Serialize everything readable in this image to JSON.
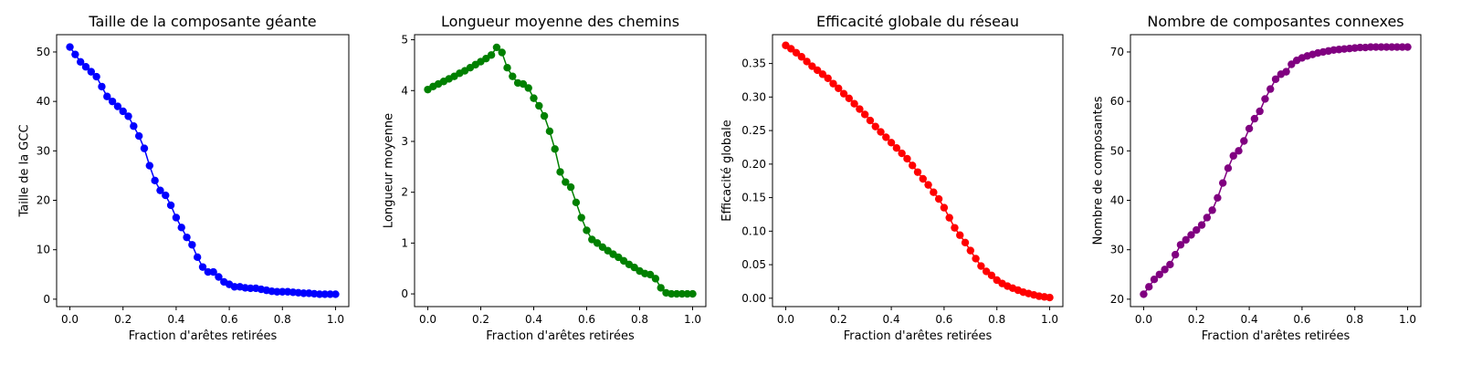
{
  "chart_data": [
    {
      "type": "line",
      "title": "Taille de la composante géante",
      "xlabel": "Fraction d'arêtes retirées",
      "ylabel": "Taille de la GCC",
      "xlim": [
        -0.05,
        1.05
      ],
      "ylim": [
        -1.5,
        53.5
      ],
      "xticks": [
        0.0,
        0.2,
        0.4,
        0.6,
        0.8,
        1.0
      ],
      "xtick_labels": [
        "0.0",
        "0.2",
        "0.4",
        "0.6",
        "0.8",
        "1.0"
      ],
      "yticks": [
        0,
        10,
        20,
        30,
        40,
        50
      ],
      "ytick_labels": [
        "0",
        "10",
        "20",
        "30",
        "40",
        "50"
      ],
      "grid": false,
      "series": [
        {
          "color": "#0000ff",
          "marker": "circle",
          "x": [
            0.0,
            0.02,
            0.04,
            0.06,
            0.08,
            0.1,
            0.12,
            0.14,
            0.16,
            0.18,
            0.2,
            0.22,
            0.24,
            0.26,
            0.28,
            0.3,
            0.32,
            0.34,
            0.36,
            0.38,
            0.4,
            0.42,
            0.44,
            0.46,
            0.48,
            0.5,
            0.52,
            0.54,
            0.56,
            0.58,
            0.6,
            0.62,
            0.64,
            0.66,
            0.68,
            0.7,
            0.72,
            0.74,
            0.76,
            0.78,
            0.8,
            0.82,
            0.84,
            0.86,
            0.88,
            0.9,
            0.92,
            0.94,
            0.96,
            0.98,
            1.0
          ],
          "y": [
            51,
            49.5,
            48,
            47,
            46,
            45,
            43,
            41,
            40,
            39,
            38,
            37,
            35,
            33,
            30.5,
            27,
            24,
            22,
            21,
            19,
            16.5,
            14.5,
            12.5,
            11,
            8.5,
            6.5,
            5.5,
            5.5,
            4.5,
            3.5,
            3,
            2.5,
            2.5,
            2.3,
            2.2,
            2.2,
            2.0,
            1.8,
            1.6,
            1.5,
            1.5,
            1.5,
            1.4,
            1.3,
            1.2,
            1.2,
            1.1,
            1.0,
            1.0,
            1.0,
            1.0
          ]
        }
      ]
    },
    {
      "type": "line",
      "title": "Longueur moyenne des chemins",
      "xlabel": "Fraction d'arêtes retirées",
      "ylabel": "Longueur moyenne",
      "xlim": [
        -0.05,
        1.05
      ],
      "ylim": [
        -0.25,
        5.1
      ],
      "xticks": [
        0.0,
        0.2,
        0.4,
        0.6,
        0.8,
        1.0
      ],
      "xtick_labels": [
        "0.0",
        "0.2",
        "0.4",
        "0.6",
        "0.8",
        "1.0"
      ],
      "yticks": [
        0,
        1,
        2,
        3,
        4,
        5
      ],
      "ytick_labels": [
        "0",
        "1",
        "2",
        "3",
        "4",
        "5"
      ],
      "grid": false,
      "series": [
        {
          "color": "#008000",
          "marker": "circle",
          "x": [
            0.0,
            0.02,
            0.04,
            0.06,
            0.08,
            0.1,
            0.12,
            0.14,
            0.16,
            0.18,
            0.2,
            0.22,
            0.24,
            0.26,
            0.28,
            0.3,
            0.32,
            0.34,
            0.36,
            0.38,
            0.4,
            0.42,
            0.44,
            0.46,
            0.48,
            0.5,
            0.52,
            0.54,
            0.56,
            0.58,
            0.6,
            0.62,
            0.64,
            0.66,
            0.68,
            0.7,
            0.72,
            0.74,
            0.76,
            0.78,
            0.8,
            0.82,
            0.84,
            0.86,
            0.88,
            0.9,
            0.92,
            0.94,
            0.96,
            0.98,
            1.0
          ],
          "y": [
            4.02,
            4.08,
            4.13,
            4.18,
            4.23,
            4.28,
            4.34,
            4.39,
            4.45,
            4.51,
            4.57,
            4.63,
            4.7,
            4.85,
            4.75,
            4.45,
            4.28,
            4.15,
            4.13,
            4.05,
            3.85,
            3.7,
            3.5,
            3.2,
            2.85,
            2.4,
            2.2,
            2.1,
            1.8,
            1.5,
            1.25,
            1.07,
            1.0,
            0.92,
            0.85,
            0.78,
            0.72,
            0.65,
            0.58,
            0.52,
            0.45,
            0.4,
            0.38,
            0.3,
            0.12,
            0.02,
            0.0,
            0.0,
            0.0,
            0.0,
            0.0
          ]
        }
      ]
    },
    {
      "type": "line",
      "title": "Efficacité globale du réseau",
      "xlabel": "Fraction d'arêtes retirées",
      "ylabel": "Efficacité globale",
      "xlim": [
        -0.05,
        1.05
      ],
      "ylim": [
        -0.0125,
        0.393
      ],
      "xticks": [
        0.0,
        0.2,
        0.4,
        0.6,
        0.8,
        1.0
      ],
      "xtick_labels": [
        "0.0",
        "0.2",
        "0.4",
        "0.6",
        "0.8",
        "1.0"
      ],
      "yticks": [
        0.0,
        0.05,
        0.1,
        0.15,
        0.2,
        0.25,
        0.3,
        0.35
      ],
      "ytick_labels": [
        "0.00",
        "0.05",
        "0.10",
        "0.15",
        "0.20",
        "0.25",
        "0.30",
        "0.35"
      ],
      "grid": false,
      "series": [
        {
          "color": "#ff0000",
          "marker": "circle",
          "x": [
            0.0,
            0.02,
            0.04,
            0.06,
            0.08,
            0.1,
            0.12,
            0.14,
            0.16,
            0.18,
            0.2,
            0.22,
            0.24,
            0.26,
            0.28,
            0.3,
            0.32,
            0.34,
            0.36,
            0.38,
            0.4,
            0.42,
            0.44,
            0.46,
            0.48,
            0.5,
            0.52,
            0.54,
            0.56,
            0.58,
            0.6,
            0.62,
            0.64,
            0.66,
            0.68,
            0.7,
            0.72,
            0.74,
            0.76,
            0.78,
            0.8,
            0.82,
            0.84,
            0.86,
            0.88,
            0.9,
            0.92,
            0.94,
            0.96,
            0.98,
            1.0
          ],
          "y": [
            0.377,
            0.372,
            0.366,
            0.36,
            0.353,
            0.346,
            0.34,
            0.334,
            0.328,
            0.32,
            0.313,
            0.305,
            0.298,
            0.29,
            0.282,
            0.274,
            0.265,
            0.256,
            0.248,
            0.24,
            0.232,
            0.224,
            0.216,
            0.208,
            0.198,
            0.188,
            0.178,
            0.169,
            0.158,
            0.148,
            0.135,
            0.12,
            0.105,
            0.094,
            0.083,
            0.071,
            0.059,
            0.048,
            0.04,
            0.034,
            0.027,
            0.022,
            0.018,
            0.015,
            0.012,
            0.009,
            0.007,
            0.005,
            0.003,
            0.002,
            0.001
          ]
        }
      ]
    },
    {
      "type": "line",
      "title": "Nombre de composantes connexes",
      "xlabel": "Fraction d'arêtes retirées",
      "ylabel": "Nombre de composantes",
      "xlim": [
        -0.05,
        1.05
      ],
      "ylim": [
        18.5,
        73.5
      ],
      "xticks": [
        0.0,
        0.2,
        0.4,
        0.6,
        0.8,
        1.0
      ],
      "xtick_labels": [
        "0.0",
        "0.2",
        "0.4",
        "0.6",
        "0.8",
        "1.0"
      ],
      "yticks": [
        20,
        30,
        40,
        50,
        60,
        70
      ],
      "ytick_labels": [
        "20",
        "30",
        "40",
        "50",
        "60",
        "70"
      ],
      "grid": false,
      "series": [
        {
          "color": "#800080",
          "marker": "circle",
          "x": [
            0.0,
            0.02,
            0.04,
            0.06,
            0.08,
            0.1,
            0.12,
            0.14,
            0.16,
            0.18,
            0.2,
            0.22,
            0.24,
            0.26,
            0.28,
            0.3,
            0.32,
            0.34,
            0.36,
            0.38,
            0.4,
            0.42,
            0.44,
            0.46,
            0.48,
            0.5,
            0.52,
            0.54,
            0.56,
            0.58,
            0.6,
            0.62,
            0.64,
            0.66,
            0.68,
            0.7,
            0.72,
            0.74,
            0.76,
            0.78,
            0.8,
            0.82,
            0.84,
            0.86,
            0.88,
            0.9,
            0.92,
            0.94,
            0.96,
            0.98,
            1.0
          ],
          "y": [
            21,
            22.5,
            24,
            25,
            26,
            27,
            29,
            31,
            32,
            33,
            34,
            35,
            36.5,
            38,
            40.5,
            43.5,
            46.5,
            49,
            50,
            52,
            54.5,
            56.5,
            58,
            60.5,
            62.5,
            64.5,
            65.5,
            66,
            67.5,
            68.3,
            68.8,
            69.2,
            69.5,
            69.8,
            70.0,
            70.2,
            70.4,
            70.5,
            70.6,
            70.7,
            70.8,
            70.9,
            70.9,
            71.0,
            71.0,
            71.0,
            71.0,
            71.0,
            71.0,
            71.0,
            71.0
          ]
        }
      ]
    }
  ]
}
